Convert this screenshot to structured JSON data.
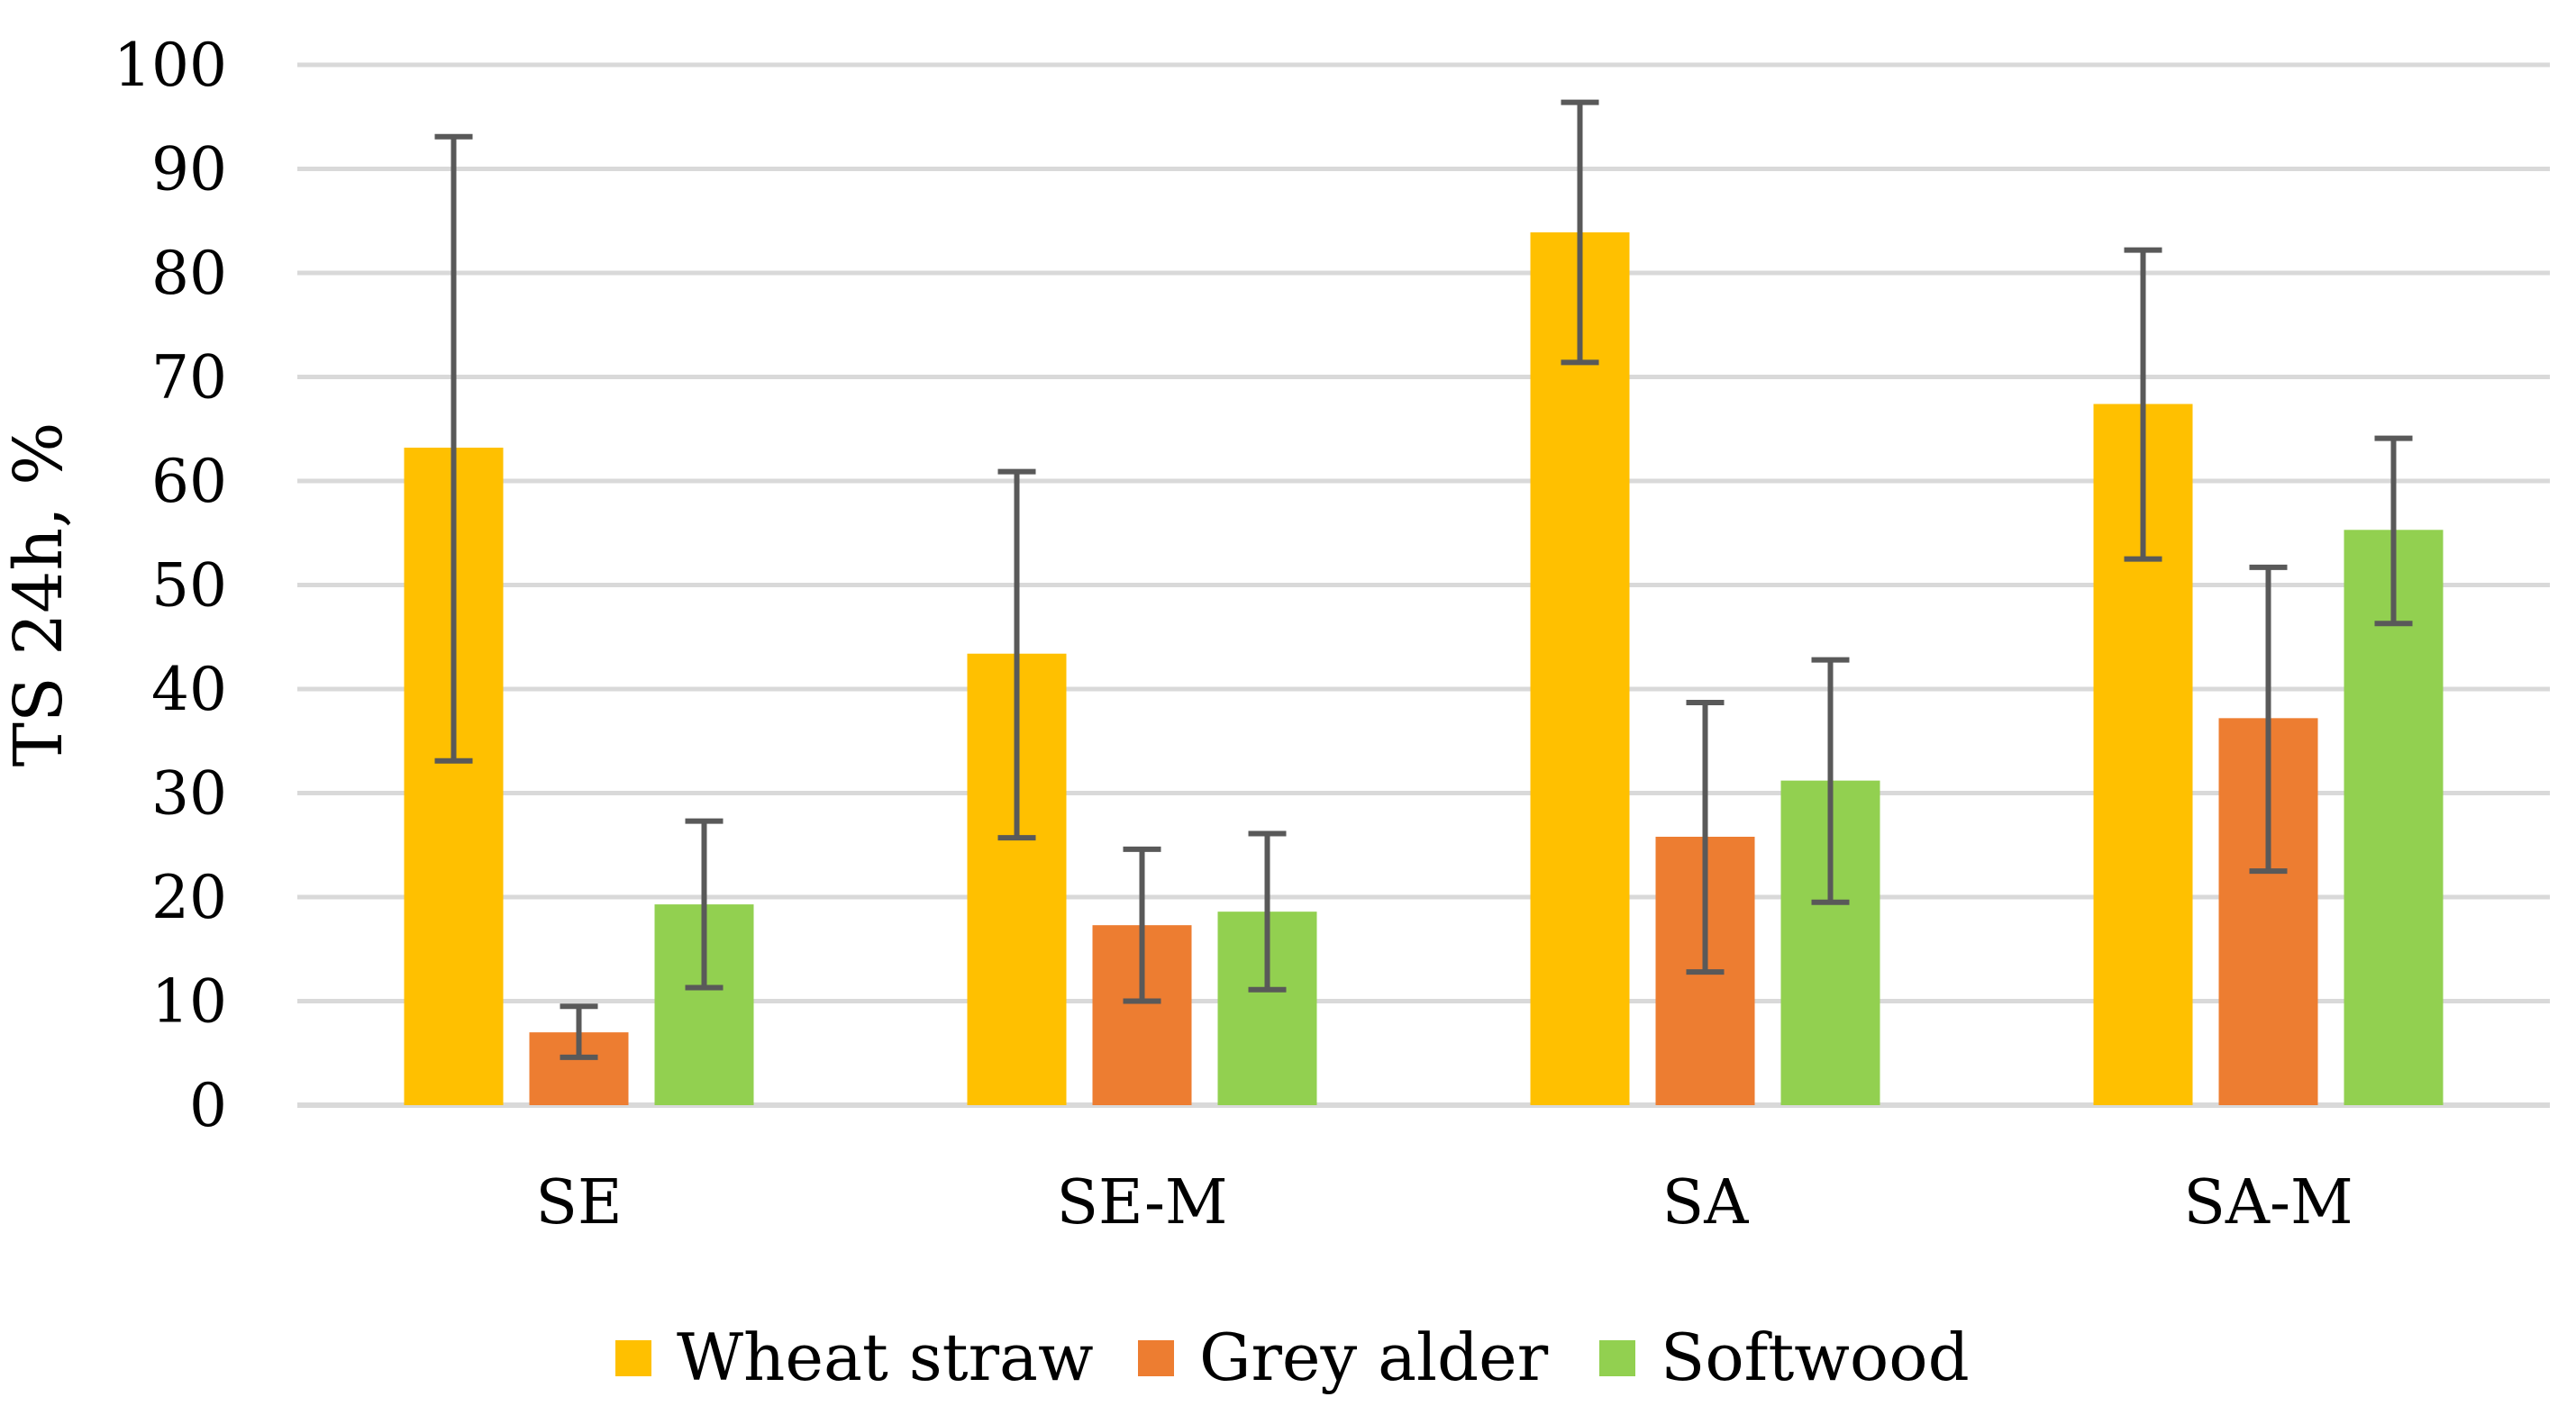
{
  "chart_data": {
    "type": "bar",
    "title": "",
    "xlabel": "",
    "ylabel": "TS 24h, %",
    "ylim": [
      0,
      100
    ],
    "yticks": [
      0,
      10,
      20,
      30,
      40,
      50,
      60,
      70,
      80,
      90,
      100
    ],
    "grid": true,
    "legend_position": "bottom-center",
    "categories": [
      "SE",
      "SE-M",
      "SA",
      "SA-M"
    ],
    "series": [
      {
        "name": "Wheat straw",
        "color": "#FFC000",
        "values": [
          63.2,
          43.4,
          83.9,
          67.4
        ],
        "error_low": [
          33.1,
          25.7,
          71.4,
          52.5
        ],
        "error_high": [
          93.1,
          60.9,
          96.4,
          82.2
        ]
      },
      {
        "name": "Grey alder",
        "color": "#ED7D31",
        "values": [
          7.0,
          17.3,
          25.8,
          37.2
        ],
        "error_low": [
          4.6,
          10.0,
          12.8,
          22.5
        ],
        "error_high": [
          9.5,
          24.6,
          38.7,
          51.7
        ]
      },
      {
        "name": "Softwood",
        "color": "#92D050",
        "values": [
          19.3,
          18.6,
          31.2,
          55.3
        ],
        "error_low": [
          11.3,
          11.1,
          19.5,
          46.3
        ],
        "error_high": [
          27.3,
          26.1,
          42.8,
          64.1
        ]
      }
    ],
    "error_bar_color": "#595959",
    "grid_color": "#D9D9D9"
  }
}
